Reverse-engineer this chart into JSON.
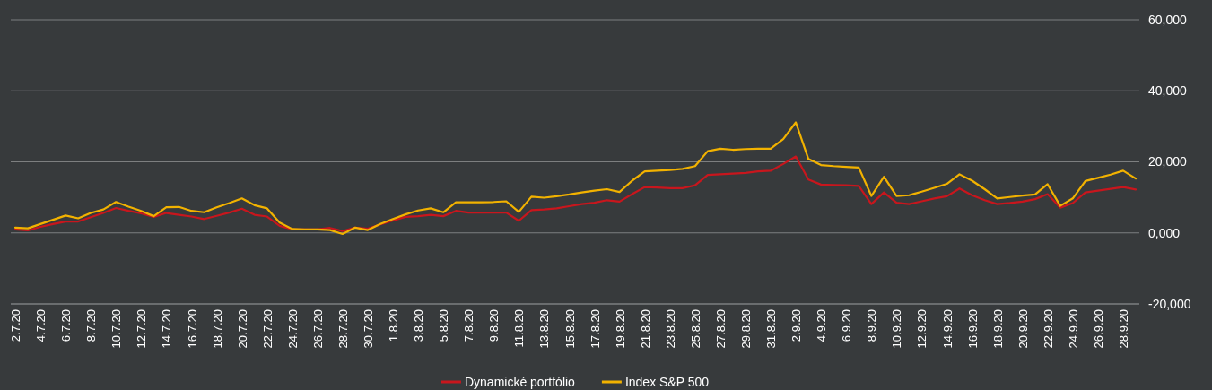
{
  "chart_data": {
    "type": "line",
    "x": [
      "--07-02",
      "--07-03",
      "--07-04",
      "--07-05",
      "--07-06",
      "--07-07",
      "--07-08",
      "--07-09",
      "--07-10",
      "--07-11",
      "--07-12",
      "--07-13",
      "--07-14",
      "--07-15",
      "--07-16",
      "--07-17",
      "--07-18",
      "--07-19",
      "--07-20",
      "--07-21",
      "--07-22",
      "--07-23",
      "--07-24",
      "--07-25",
      "--07-26",
      "--07-27",
      "--07-28",
      "--07-29",
      "--07-30",
      "--07-31",
      "--08-01",
      "--08-02",
      "--08-03",
      "--08-04",
      "--08-05",
      "--08-06",
      "--08-07",
      "--08-08",
      "--08-09",
      "--08-10",
      "--08-11",
      "--08-12",
      "--08-13",
      "--08-14",
      "--08-15",
      "--08-16",
      "--08-17",
      "--08-18",
      "--08-19",
      "--08-20",
      "--08-21",
      "--08-22",
      "--08-23",
      "--08-24",
      "--08-25",
      "--08-26",
      "--08-27",
      "--08-28",
      "--08-29",
      "--08-30",
      "--08-31",
      "--09-01",
      "--09-02",
      "--09-03",
      "--09-04",
      "--09-05",
      "--09-06",
      "--09-07",
      "--09-08",
      "--09-09",
      "--09-10",
      "--09-11",
      "--09-12",
      "--09-13",
      "--09-14",
      "--09-15",
      "--09-16",
      "--09-17",
      "--09-18",
      "--09-19",
      "--09-20",
      "--09-21",
      "--09-22",
      "--09-23",
      "--09-24",
      "--09-25",
      "--09-26",
      "--09-27",
      "--09-28",
      "--09-29"
    ],
    "series": [
      {
        "name": "Dynamické portfólio",
        "color": "#c8161d",
        "values": [
          1000,
          700,
          1700,
          2500,
          3200,
          3200,
          4400,
          5600,
          7000,
          6200,
          5500,
          4500,
          5600,
          5100,
          4600,
          3900,
          4800,
          5700,
          6800,
          5100,
          4600,
          2000,
          1000,
          1000,
          1000,
          1400,
          500,
          1500,
          1200,
          2400,
          3500,
          4500,
          4700,
          5100,
          4700,
          6200,
          5700,
          5700,
          5700,
          5700,
          3400,
          6400,
          6600,
          6900,
          7500,
          8100,
          8500,
          9200,
          8800,
          10900,
          12900,
          12800,
          12600,
          12600,
          13400,
          16300,
          16500,
          16700,
          16900,
          17300,
          17500,
          19400,
          21500,
          15000,
          13600,
          13500,
          13400,
          13200,
          8100,
          11400,
          8500,
          8100,
          8900,
          9700,
          10300,
          12500,
          10600,
          9200,
          8100,
          8400,
          8800,
          9500,
          10900,
          7100,
          8400,
          11400,
          11900,
          12400,
          12900,
          12200
        ]
      },
      {
        "name": "Index S&P 500",
        "color": "#f2b200",
        "values": [
          1500,
          1300,
          2500,
          3700,
          4900,
          4100,
          5600,
          6600,
          8700,
          7400,
          6200,
          4700,
          7200,
          7300,
          6200,
          5800,
          7200,
          8400,
          9700,
          7800,
          6900,
          2900,
          1100,
          1000,
          1000,
          800,
          -300,
          1500,
          800,
          2500,
          3900,
          5200,
          6300,
          6900,
          5800,
          8600,
          8600,
          8600,
          8700,
          8900,
          5900,
          10200,
          9900,
          10300,
          10800,
          11400,
          11900,
          12300,
          11500,
          14700,
          17300,
          17500,
          17700,
          18000,
          18800,
          23000,
          23700,
          23400,
          23600,
          23700,
          23700,
          26400,
          31100,
          20800,
          19100,
          18800,
          18600,
          18400,
          10400,
          15800,
          10400,
          10600,
          11600,
          12700,
          13800,
          16500,
          14700,
          12300,
          9700,
          10100,
          10500,
          10800,
          13700,
          7600,
          9700,
          14600,
          15500,
          16400,
          17500,
          15300
        ]
      }
    ],
    "xlim": [
      "--07-02",
      "--09-29"
    ],
    "xticks": [
      {
        "value": "--07-02",
        "label": "2.7.20"
      },
      {
        "value": "--07-04",
        "label": "4.7.20"
      },
      {
        "value": "--07-06",
        "label": "6.7.20"
      },
      {
        "value": "--07-08",
        "label": "8.7.20"
      },
      {
        "value": "--07-10",
        "label": "10.7.20"
      },
      {
        "value": "--07-12",
        "label": "12.7.20"
      },
      {
        "value": "--07-14",
        "label": "14.7.20"
      },
      {
        "value": "--07-16",
        "label": "16.7.20"
      },
      {
        "value": "--07-18",
        "label": "18.7.20"
      },
      {
        "value": "--07-20",
        "label": "20.7.20"
      },
      {
        "value": "--07-22",
        "label": "22.7.20"
      },
      {
        "value": "--07-24",
        "label": "24.7.20"
      },
      {
        "value": "--07-26",
        "label": "26.7.20"
      },
      {
        "value": "--07-28",
        "label": "28.7.20"
      },
      {
        "value": "--07-30",
        "label": "30.7.20"
      },
      {
        "value": "--08-01",
        "label": "1.8.20"
      },
      {
        "value": "--08-03",
        "label": "3.8.20"
      },
      {
        "value": "--08-05",
        "label": "5.8.20"
      },
      {
        "value": "--08-07",
        "label": "7.8.20"
      },
      {
        "value": "--08-09",
        "label": "9.8.20"
      },
      {
        "value": "--08-11",
        "label": "11.8.20"
      },
      {
        "value": "--08-13",
        "label": "13.8.20"
      },
      {
        "value": "--08-15",
        "label": "15.8.20"
      },
      {
        "value": "--08-17",
        "label": "17.8.20"
      },
      {
        "value": "--08-19",
        "label": "19.8.20"
      },
      {
        "value": "--08-21",
        "label": "21.8.20"
      },
      {
        "value": "--08-23",
        "label": "23.8.20"
      },
      {
        "value": "--08-25",
        "label": "25.8.20"
      },
      {
        "value": "--08-27",
        "label": "27.8.20"
      },
      {
        "value": "--08-29",
        "label": "29.8.20"
      },
      {
        "value": "--08-31",
        "label": "31.8.20"
      },
      {
        "value": "--09-02",
        "label": "2.9.20"
      },
      {
        "value": "--09-04",
        "label": "4.9.20"
      },
      {
        "value": "--09-06",
        "label": "6.9.20"
      },
      {
        "value": "--09-08",
        "label": "8.9.20"
      },
      {
        "value": "--09-10",
        "label": "10.9.20"
      },
      {
        "value": "--09-12",
        "label": "12.9.20"
      },
      {
        "value": "--09-14",
        "label": "14.9.20"
      },
      {
        "value": "--09-16",
        "label": "16.9.20"
      },
      {
        "value": "--09-18",
        "label": "18.9.20"
      },
      {
        "value": "--09-20",
        "label": "20.9.20"
      },
      {
        "value": "--09-22",
        "label": "22.9.20"
      },
      {
        "value": "--09-24",
        "label": "24.9.20"
      },
      {
        "value": "--09-26",
        "label": "26.9.20"
      },
      {
        "value": "--09-28",
        "label": "28.9.20"
      }
    ],
    "ylim": [
      -20000,
      60000
    ],
    "yticks": [
      {
        "value": -20000,
        "label": "-20,000"
      },
      {
        "value": 0,
        "label": "0,000"
      },
      {
        "value": 20000,
        "label": "20,000"
      },
      {
        "value": 40000,
        "label": "40,000"
      },
      {
        "value": 60000,
        "label": "60,000"
      }
    ],
    "grid": "y",
    "legend": "bottom",
    "marker": "none",
    "line_style": "solid"
  }
}
